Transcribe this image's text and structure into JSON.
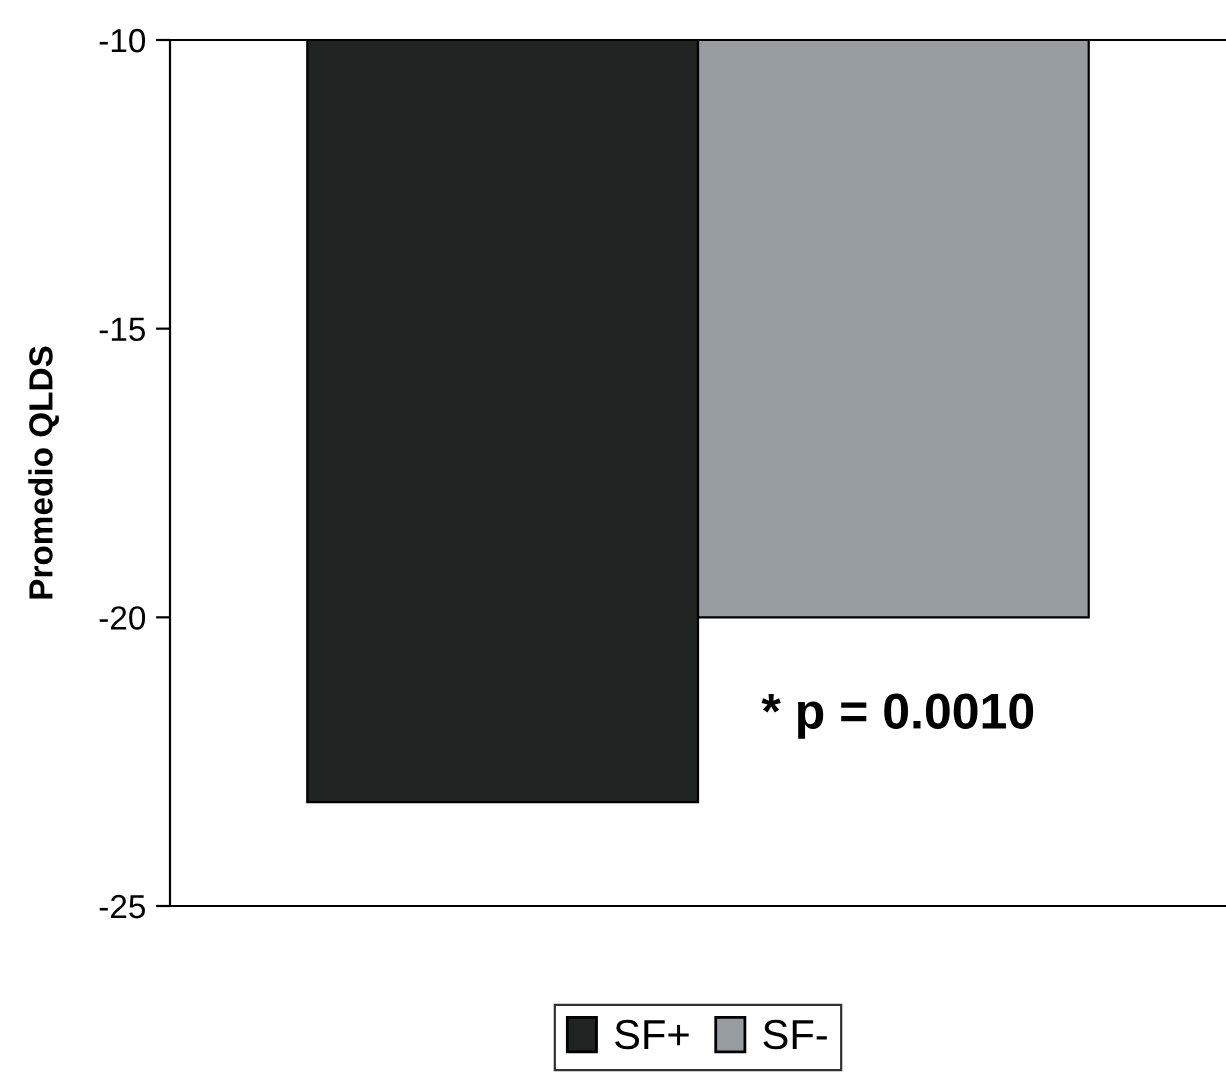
{
  "chart_data": {
    "type": "bar",
    "ylabel": "Promedio QLDS",
    "categories": [
      null
    ],
    "series": [
      {
        "name": "SF+",
        "color": "#1f2322",
        "values": [
          -23.2
        ]
      },
      {
        "name": "SF-",
        "color": "#979ca1",
        "values": [
          -20.0
        ]
      }
    ],
    "ylim": [
      -25,
      -10
    ],
    "yticks": [
      -10,
      -15,
      -20,
      -25
    ],
    "grid": false,
    "legend": "bottom",
    "annotations": [
      "* p = 0.0010"
    ]
  }
}
